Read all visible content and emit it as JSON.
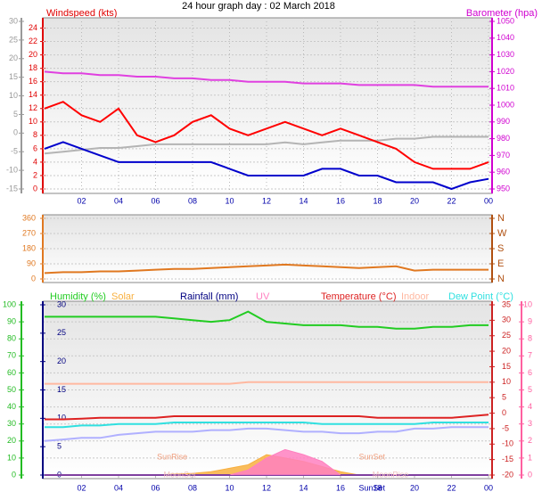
{
  "chart_data": [
    {
      "type": "line",
      "title": "24 hour graph day : 02 March 2018",
      "ylabel": "Windspeed (kts)",
      "y2label": "Barometer (hpa)",
      "xlim": [
        0,
        24
      ],
      "xticks": [
        {
          "value": 2,
          "label": "02"
        },
        {
          "value": 4,
          "label": "04"
        },
        {
          "value": 6,
          "label": "06"
        },
        {
          "value": 8,
          "label": "08"
        },
        10,
        12,
        14,
        16,
        18,
        20,
        22,
        {
          "value": 24,
          "label": "00"
        }
      ],
      "ylim": [
        0,
        25
      ],
      "yticks": [
        0,
        2,
        4,
        6,
        8,
        10,
        12,
        14,
        16,
        18,
        20,
        22,
        24
      ],
      "y2lim": [
        950,
        1050
      ],
      "y2ticks": [
        950,
        960,
        970,
        980,
        990,
        1000,
        1010,
        1020,
        1030,
        1040,
        1050
      ],
      "y3lim": [
        -15,
        30
      ],
      "y3ticks": [
        -15,
        -10,
        -5,
        0,
        5,
        10,
        15,
        20,
        25,
        30
      ],
      "grid": true,
      "x": [
        0,
        1,
        2,
        3,
        4,
        5,
        6,
        7,
        8,
        9,
        10,
        11,
        12,
        13,
        14,
        15,
        16,
        17,
        18,
        19,
        20,
        21,
        22,
        23,
        24
      ],
      "series": [
        {
          "color": "#b4b4b4",
          "axis": "y3",
          "values": [
            -5.5,
            -5,
            -4.5,
            -4,
            -4,
            -3.5,
            -3,
            -3,
            -3,
            -3,
            -3,
            -3,
            -3,
            -2.5,
            -3,
            -2.5,
            -2,
            -2,
            -2,
            -1.5,
            -1.5,
            -1,
            -1,
            -1,
            -1
          ]
        },
        {
          "color": "#ff0000",
          "axis": "y",
          "values": [
            12,
            13,
            11,
            10,
            12,
            8,
            7,
            8,
            10,
            11,
            9,
            8,
            9,
            10,
            9,
            8,
            9,
            8,
            7,
            6,
            4,
            3,
            3,
            3,
            4
          ]
        },
        {
          "color": "#0000cc",
          "axis": "y",
          "values": [
            6,
            7,
            6,
            5,
            4,
            4,
            4,
            4,
            4,
            4,
            3,
            2,
            2,
            2,
            2,
            3,
            3,
            2,
            2,
            1,
            1,
            1,
            0,
            1,
            1.5
          ]
        },
        {
          "color": "#e040e0",
          "axis": "y2",
          "values": [
            1020,
            1019,
            1019,
            1018,
            1018,
            1017,
            1017,
            1016,
            1016,
            1015,
            1015,
            1014,
            1014,
            1014,
            1013,
            1013,
            1013,
            1012,
            1012,
            1012,
            1012,
            1011,
            1011,
            1011,
            1011
          ]
        }
      ]
    },
    {
      "type": "line",
      "xlim": [
        0,
        24
      ],
      "ylim": [
        0,
        360
      ],
      "yticks": [
        0,
        90,
        180,
        270,
        360
      ],
      "y2lim": [
        0,
        360
      ],
      "y2ticks": [
        {
          "value": 0,
          "label": "N"
        },
        {
          "value": 90,
          "label": "E"
        },
        {
          "value": 180,
          "label": "S"
        },
        {
          "value": 270,
          "label": "W"
        },
        {
          "value": 360,
          "label": "N"
        }
      ],
      "grid": true,
      "x": [
        0,
        1,
        2,
        3,
        4,
        5,
        6,
        7,
        8,
        9,
        10,
        11,
        12,
        13,
        14,
        15,
        16,
        17,
        18,
        19,
        20,
        21,
        22,
        23,
        24
      ],
      "series": [
        {
          "color": "#e07820",
          "axis": "y",
          "values": [
            35,
            40,
            40,
            45,
            45,
            50,
            55,
            60,
            60,
            65,
            70,
            75,
            80,
            85,
            80,
            75,
            70,
            65,
            70,
            75,
            50,
            55,
            55,
            55,
            55
          ]
        }
      ]
    },
    {
      "type": "line",
      "xlim": [
        0,
        24
      ],
      "xticks": [
        {
          "value": 2,
          "label": "02"
        },
        {
          "value": 4,
          "label": "04"
        },
        {
          "value": 6,
          "label": "06"
        },
        {
          "value": 8,
          "label": "08"
        },
        10,
        12,
        14,
        16,
        18,
        20,
        22,
        {
          "value": 24,
          "label": "00"
        }
      ],
      "ylim": [
        0,
        100
      ],
      "yticks": [
        0,
        10,
        20,
        30,
        40,
        50,
        60,
        70,
        80,
        90,
        100
      ],
      "y2lim": [
        -20,
        35
      ],
      "y2ticks": [
        -20,
        -15,
        -10,
        -5,
        0,
        5,
        10,
        15,
        20,
        25,
        30,
        35
      ],
      "y3lim": [
        0,
        30
      ],
      "y3ticks": [
        0,
        5,
        10,
        15,
        20,
        25,
        30
      ],
      "y4lim": [
        0,
        10
      ],
      "y4ticks": [
        0,
        1,
        2,
        3,
        4,
        5,
        6,
        7,
        8,
        9,
        10
      ],
      "grid": true,
      "x": [
        0,
        1,
        2,
        3,
        4,
        5,
        6,
        7,
        8,
        9,
        10,
        11,
        12,
        13,
        14,
        15,
        16,
        17,
        18,
        19,
        20,
        21,
        22,
        23,
        24
      ],
      "series": [
        {
          "name": "Humidity (%)",
          "color": "#22cc22",
          "axis": "y",
          "values": [
            93,
            93,
            93,
            93,
            93,
            93,
            93,
            92,
            91,
            90,
            91,
            96,
            90,
            89,
            88,
            88,
            88,
            87,
            87,
            86,
            86,
            87,
            87,
            88,
            88
          ]
        },
        {
          "name": "Solar",
          "color": "#f8b040",
          "axis": "y",
          "fill": true,
          "values": [
            0,
            0,
            0,
            0,
            0,
            0,
            0,
            0.5,
            1,
            2,
            4,
            6,
            12,
            10,
            8,
            5,
            2,
            0,
            0,
            0,
            0,
            0,
            0,
            0,
            0
          ]
        },
        {
          "name": "Rainfall (mm)",
          "color": "#000080",
          "axis": "y3",
          "values": [
            0,
            0,
            0,
            0,
            0,
            0,
            0,
            0,
            0,
            0,
            0,
            0,
            0,
            0,
            0,
            0,
            0,
            0,
            0,
            0,
            0,
            0,
            0,
            0,
            0
          ]
        },
        {
          "name": "UV",
          "color": "#ff80c0",
          "axis": "y4",
          "fill": true,
          "values": [
            0,
            0,
            0,
            0,
            0,
            0,
            0,
            0,
            0,
            0,
            0,
            0.3,
            1,
            1.5,
            1.2,
            0.8,
            0,
            0,
            0,
            0,
            0,
            0,
            0,
            0,
            0
          ]
        },
        {
          "name": "Temperature (°C)",
          "color": "#dd2222",
          "axis": "y2",
          "values": [
            -2,
            -2,
            -1.8,
            -1.5,
            -1.5,
            -1.5,
            -1.5,
            -1,
            -1,
            -1,
            -1,
            -1,
            -1,
            -1,
            -1,
            -1,
            -1,
            -1,
            -1.5,
            -1.5,
            -1.5,
            -1.5,
            -1.5,
            -1,
            -0.5
          ]
        },
        {
          "name": "Indoor",
          "color": "#ffb8a0",
          "axis": "y2",
          "values": [
            9.5,
            9.5,
            9.5,
            9.5,
            9.5,
            9.5,
            9.5,
            9.5,
            9.5,
            9.5,
            9.5,
            10,
            10,
            10,
            10,
            10,
            10,
            10,
            10,
            10,
            10,
            10,
            10,
            10,
            10
          ]
        },
        {
          "name": "Dew Point (°C)",
          "color": "#30e0e0",
          "axis": "y2",
          "values": [
            -4.5,
            -4.5,
            -4,
            -4,
            -3.5,
            -3.5,
            -3.5,
            -3,
            -3,
            -3,
            -3,
            -3,
            -3,
            -3,
            -3,
            -3.5,
            -3.5,
            -3.5,
            -3.5,
            -3.5,
            -3.5,
            -3,
            -3,
            -3,
            -3
          ]
        },
        {
          "color": "#b0b0ff",
          "axis": "y2",
          "values": [
            -9,
            -8.5,
            -8,
            -8,
            -7,
            -6.5,
            -6,
            -6,
            -6,
            -5.5,
            -5.5,
            -5,
            -5,
            -5.5,
            -6,
            -6,
            -6.5,
            -6.5,
            -6,
            -6,
            -5,
            -5,
            -4.5,
            -4.5,
            -4.5
          ]
        }
      ],
      "annotations": [
        {
          "text": "SunRise",
          "x": 6.9
        },
        {
          "text": "SunSet",
          "x": 17.7
        },
        {
          "text": "MoonSet",
          "x": 7.3
        },
        {
          "text": "MoonRise",
          "x": 18.7
        },
        {
          "text": "SunSet",
          "x": 17.7
        }
      ]
    }
  ]
}
